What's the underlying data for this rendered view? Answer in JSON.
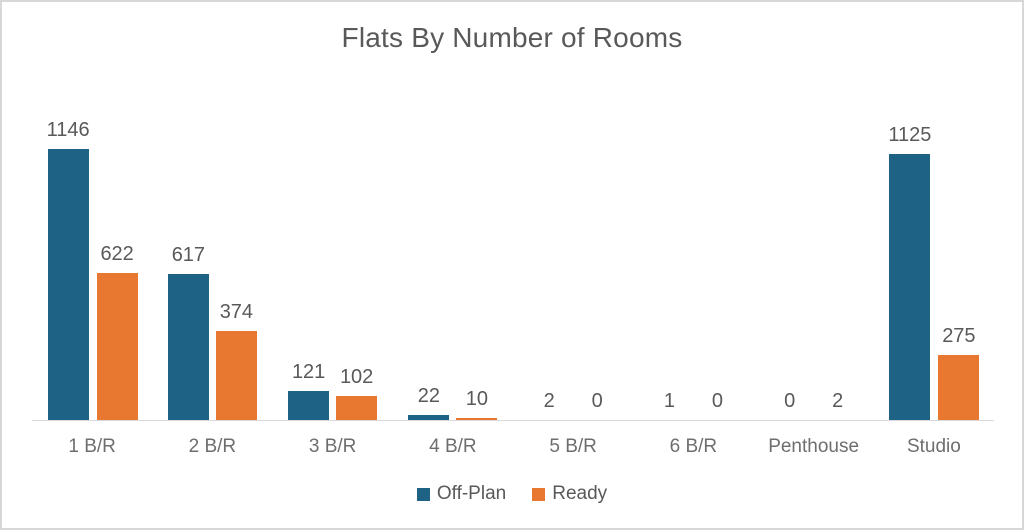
{
  "window": {
    "background": "#ffffff",
    "border_color": "#d7d7d7"
  },
  "chart_data": {
    "type": "bar",
    "title": "Flats By Number of Rooms",
    "categories": [
      "1 B/R",
      "2 B/R",
      "3 B/R",
      "4 B/R",
      "5 B/R",
      "6 B/R",
      "Penthouse",
      "Studio"
    ],
    "series": [
      {
        "name": "Off-Plan",
        "color": "#1e6285",
        "values": [
          1146,
          617,
          121,
          22,
          2,
          1,
          0,
          1125
        ]
      },
      {
        "name": "Ready",
        "color": "#e8782f",
        "values": [
          622,
          374,
          102,
          10,
          0,
          0,
          2,
          275
        ]
      }
    ],
    "xlabel": "",
    "ylabel": "",
    "ylim": [
      0,
      1200
    ],
    "grid": false,
    "data_labels": true,
    "legend_position": "bottom",
    "axis_line_color": "#d9d9d9",
    "title_color": "#595959",
    "value_label_color": "#595959",
    "axis_label_color": "#6e6e6e"
  }
}
